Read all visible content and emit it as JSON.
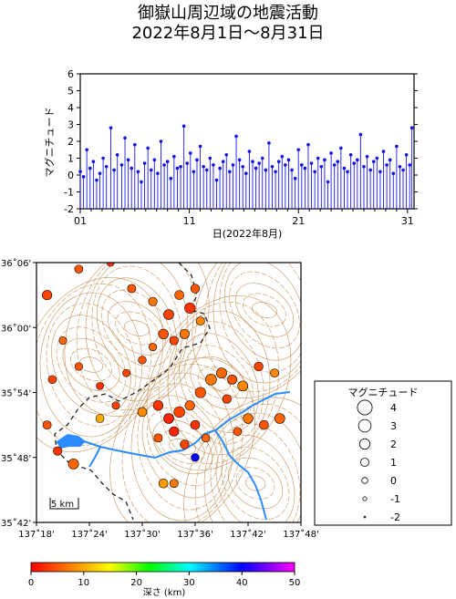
{
  "title": "御嶽山周辺域の地震活動",
  "subtitle": "2022年8月1日～8月31日",
  "colors": {
    "stem": "#1a1aff",
    "point": "#1010e0",
    "river": "#2b8cff",
    "contour": "#c8925a",
    "frame": "#000000"
  },
  "chart_data": [
    {
      "type": "scatter",
      "subtype": "stem",
      "title": "",
      "ylabel": "マグニチュード",
      "xlabel": "日(2022年8月)",
      "xlim": [
        1,
        31.6
      ],
      "ylim": [
        -2,
        6
      ],
      "x_ticks": [
        "01",
        "11",
        "21",
        "31"
      ],
      "y_ticks": [
        "-2",
        "-1",
        "0",
        "1",
        "2",
        "3",
        "4",
        "5",
        "6"
      ],
      "series": [
        {
          "x": [
            1.0,
            1.3,
            1.6,
            1.9,
            2.2,
            2.5,
            2.8,
            3.1,
            3.4,
            3.8,
            4.1,
            4.4,
            4.8,
            5.1,
            5.4,
            5.7,
            6.0,
            6.3,
            6.6,
            6.9,
            7.2,
            7.5,
            7.8,
            8.1,
            8.4,
            8.7,
            9.0,
            9.3,
            9.6,
            9.9,
            10.2,
            10.5,
            10.8,
            11.1,
            11.4,
            11.7,
            12.0,
            12.3,
            12.6,
            12.9,
            13.2,
            13.5,
            13.8,
            14.1,
            14.4,
            14.7,
            15.0,
            15.3,
            15.6,
            15.9,
            16.2,
            16.5,
            16.8,
            17.1,
            17.4,
            17.7,
            18.0,
            18.3,
            18.6,
            18.9,
            19.2,
            19.5,
            19.8,
            20.1,
            20.4,
            20.7,
            21.0,
            21.3,
            21.6,
            21.9,
            22.2,
            22.5,
            22.8,
            23.1,
            23.4,
            23.7,
            24.0,
            24.3,
            24.6,
            24.9,
            25.2,
            25.5,
            25.8,
            26.1,
            26.4,
            26.7,
            27.0,
            27.3,
            27.6,
            27.9,
            28.2,
            28.5,
            28.8,
            29.1,
            29.4,
            29.7,
            30.0,
            30.3,
            30.6,
            30.9,
            31.2,
            31.4
          ],
          "y": [
            0.2,
            -0.1,
            1.5,
            0.4,
            0.8,
            -0.3,
            0.1,
            1.0,
            0.5,
            2.8,
            0.3,
            1.2,
            0.6,
            2.2,
            0.9,
            0.4,
            1.8,
            0.2,
            -0.4,
            0.7,
            1.6,
            0.3,
            0.9,
            0.1,
            2.0,
            0.6,
            0.8,
            -0.2,
            1.1,
            0.4,
            0.5,
            2.9,
            0.7,
            1.3,
            0.2,
            0.9,
            1.7,
            0.5,
            0.3,
            1.0,
            0.6,
            -0.3,
            0.4,
            0.8,
            1.2,
            0.2,
            0.6,
            2.3,
            0.9,
            0.5,
            0.1,
            1.4,
            0.8,
            0.4,
            0.7,
            1.0,
            0.3,
            1.9,
            0.5,
            0.2,
            0.8,
            1.1,
            0.6,
            0.9,
            0.3,
            -0.2,
            1.5,
            0.6,
            0.4,
            1.8,
            0.7,
            0.2,
            1.0,
            0.5,
            0.9,
            -0.4,
            1.3,
            0.6,
            0.8,
            1.6,
            0.4,
            0.2,
            1.2,
            0.7,
            0.9,
            2.4,
            0.5,
            1.1,
            0.3,
            0.8,
            1.0,
            0.2,
            1.4,
            0.6,
            0.9,
            0.1,
            1.7,
            0.5,
            0.3,
            1.2,
            0.6,
            2.8
          ]
        }
      ]
    },
    {
      "type": "scatter",
      "subtype": "epicenter-map",
      "title": "",
      "x_ticks": [
        "137˚18'",
        "137˚24'",
        "137˚30'",
        "137˚36'",
        "137˚42'",
        "137˚48'"
      ],
      "y_ticks": [
        "35˚42'",
        "35˚48'",
        "35˚54'",
        "36˚00'",
        "36˚06'"
      ],
      "xlim": [
        137.3,
        137.8
      ],
      "ylim": [
        35.7,
        36.1
      ],
      "scale_label": "5 km",
      "points": [
        {
          "lon": 137.32,
          "lat": 36.05,
          "m": 1.4,
          "depth": 4
        },
        {
          "lon": 137.35,
          "lat": 35.98,
          "m": 0.6,
          "depth": 6
        },
        {
          "lon": 137.38,
          "lat": 36.09,
          "m": 0.8,
          "depth": 5
        },
        {
          "lon": 137.44,
          "lat": 36.1,
          "m": 0.5,
          "depth": 3
        },
        {
          "lon": 137.48,
          "lat": 36.06,
          "m": 0.9,
          "depth": 5
        },
        {
          "lon": 137.52,
          "lat": 36.04,
          "m": 1.0,
          "depth": 7
        },
        {
          "lon": 137.55,
          "lat": 36.02,
          "m": 1.6,
          "depth": 4
        },
        {
          "lon": 137.57,
          "lat": 36.05,
          "m": 1.2,
          "depth": 6
        },
        {
          "lon": 137.59,
          "lat": 36.03,
          "m": 1.8,
          "depth": 3
        },
        {
          "lon": 137.6,
          "lat": 36.06,
          "m": 1.1,
          "depth": 5
        },
        {
          "lon": 137.61,
          "lat": 36.01,
          "m": 0.9,
          "depth": 8
        },
        {
          "lon": 137.54,
          "lat": 35.99,
          "m": 1.5,
          "depth": 5
        },
        {
          "lon": 137.56,
          "lat": 35.98,
          "m": 1.0,
          "depth": 4
        },
        {
          "lon": 137.52,
          "lat": 35.97,
          "m": 0.6,
          "depth": 6
        },
        {
          "lon": 137.58,
          "lat": 35.99,
          "m": 1.3,
          "depth": 7
        },
        {
          "lon": 137.5,
          "lat": 35.95,
          "m": 0.7,
          "depth": 5
        },
        {
          "lon": 137.47,
          "lat": 35.93,
          "m": 0.5,
          "depth": 4
        },
        {
          "lon": 137.42,
          "lat": 35.91,
          "m": 0.4,
          "depth": 3
        },
        {
          "lon": 137.38,
          "lat": 35.94,
          "m": 0.6,
          "depth": 5
        },
        {
          "lon": 137.33,
          "lat": 35.92,
          "m": 0.8,
          "depth": 4
        },
        {
          "lon": 137.32,
          "lat": 35.85,
          "m": 0.9,
          "depth": 5
        },
        {
          "lon": 137.34,
          "lat": 35.81,
          "m": 1.0,
          "depth": 3
        },
        {
          "lon": 137.37,
          "lat": 35.79,
          "m": 1.7,
          "depth": 6
        },
        {
          "lon": 137.42,
          "lat": 35.86,
          "m": 0.8,
          "depth": 10
        },
        {
          "lon": 137.45,
          "lat": 35.88,
          "m": 0.5,
          "depth": 4
        },
        {
          "lon": 137.5,
          "lat": 35.87,
          "m": 1.2,
          "depth": 8
        },
        {
          "lon": 137.53,
          "lat": 35.88,
          "m": 1.5,
          "depth": 3
        },
        {
          "lon": 137.55,
          "lat": 35.86,
          "m": 1.6,
          "depth": 2
        },
        {
          "lon": 137.57,
          "lat": 35.87,
          "m": 1.9,
          "depth": 4
        },
        {
          "lon": 137.59,
          "lat": 35.88,
          "m": 1.4,
          "depth": 6
        },
        {
          "lon": 137.61,
          "lat": 35.9,
          "m": 1.8,
          "depth": 5
        },
        {
          "lon": 137.63,
          "lat": 35.92,
          "m": 2.0,
          "depth": 7
        },
        {
          "lon": 137.65,
          "lat": 35.93,
          "m": 1.7,
          "depth": 6
        },
        {
          "lon": 137.67,
          "lat": 35.92,
          "m": 1.3,
          "depth": 5
        },
        {
          "lon": 137.69,
          "lat": 35.91,
          "m": 1.6,
          "depth": 8
        },
        {
          "lon": 137.66,
          "lat": 35.89,
          "m": 1.0,
          "depth": 4
        },
        {
          "lon": 137.6,
          "lat": 35.85,
          "m": 1.2,
          "depth": 3
        },
        {
          "lon": 137.56,
          "lat": 35.84,
          "m": 1.4,
          "depth": 2
        },
        {
          "lon": 137.53,
          "lat": 35.83,
          "m": 0.9,
          "depth": 5
        },
        {
          "lon": 137.58,
          "lat": 35.82,
          "m": 1.1,
          "depth": 4
        },
        {
          "lon": 137.62,
          "lat": 35.83,
          "m": 0.8,
          "depth": 6
        },
        {
          "lon": 137.6,
          "lat": 35.8,
          "m": 0.7,
          "depth": 40
        },
        {
          "lon": 137.7,
          "lat": 35.86,
          "m": 1.5,
          "depth": 7
        },
        {
          "lon": 137.73,
          "lat": 35.85,
          "m": 1.2,
          "depth": 5
        },
        {
          "lon": 137.76,
          "lat": 35.86,
          "m": 1.6,
          "depth": 6
        },
        {
          "lon": 137.75,
          "lat": 35.93,
          "m": 0.9,
          "depth": 8
        },
        {
          "lon": 137.72,
          "lat": 35.94,
          "m": 1.1,
          "depth": 4
        },
        {
          "lon": 137.54,
          "lat": 35.76,
          "m": 1.2,
          "depth": 9
        },
        {
          "lon": 137.56,
          "lat": 35.76,
          "m": 0.9,
          "depth": 7
        },
        {
          "lon": 137.68,
          "lat": 35.84,
          "m": 0.8,
          "depth": 5
        }
      ]
    }
  ],
  "legend": {
    "title": "マグニチュード",
    "entries": [
      {
        "label": "4",
        "m": 4
      },
      {
        "label": "3",
        "m": 3
      },
      {
        "label": "2",
        "m": 2
      },
      {
        "label": "1",
        "m": 1
      },
      {
        "label": "0",
        "m": 0
      },
      {
        "label": "-1",
        "m": -1
      },
      {
        "label": "-2",
        "m": -2
      }
    ]
  },
  "colorbar": {
    "label": "深さ (km)",
    "ticks": [
      "0",
      "10",
      "20",
      "30",
      "40",
      "50"
    ],
    "range": [
      0,
      50
    ]
  }
}
